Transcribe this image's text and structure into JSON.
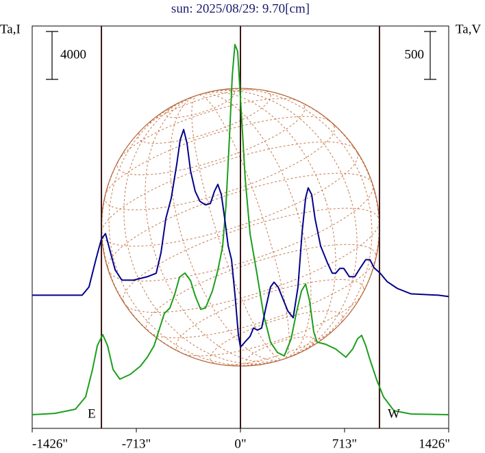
{
  "chart_data": {
    "type": "line",
    "title": "sun: 2025/08/29: 9.70[cm]",
    "y_label": "Ta,I",
    "y2_label": "Ta,V",
    "scale_bar": {
      "value": 4000,
      "label": "4000"
    },
    "scale_bar2": {
      "value": 500,
      "label": "500"
    },
    "xlim": [
      -1426,
      1426
    ],
    "xticks": [
      {
        "value": -1426,
        "label": "-1426\""
      },
      {
        "value": -713,
        "label": "-713\""
      },
      {
        "value": 0,
        "label": "0\""
      },
      {
        "value": 713,
        "label": "713\""
      },
      {
        "value": 1426,
        "label": "1426\""
      }
    ],
    "ylim": [
      -1140,
      32460
    ],
    "y2lim": [
      -1390,
      2810
    ],
    "solar_radius": 952,
    "vlines": [
      -952,
      0,
      952
    ],
    "east_label": "E",
    "west_label": "W",
    "series": [
      {
        "name": "Ta,I",
        "color": "#1a9e1a",
        "x": [
          -1426,
          -1271,
          -1130,
          -1060,
          -1013,
          -980,
          -943,
          -910,
          -872,
          -826,
          -755,
          -685,
          -638,
          -591,
          -554,
          -521,
          -483,
          -450,
          -417,
          -380,
          -342,
          -310,
          -272,
          -239,
          -192,
          -155,
          -122,
          -99,
          -75,
          -56,
          -38,
          -19,
          5,
          33,
          66,
          113,
          159,
          206,
          253,
          300,
          347,
          380,
          418,
          446,
          474,
          502,
          525,
          582,
          652,
          722,
          769,
          802,
          830,
          858,
          886,
          933,
          980,
          1051,
          1168,
          1426
        ],
        "values": [
          0,
          110,
          460,
          1490,
          3770,
          5770,
          6690,
          5770,
          3770,
          2970,
          3370,
          4060,
          4800,
          5770,
          7200,
          8460,
          8910,
          10060,
          11490,
          11830,
          11200,
          9940,
          8800,
          8910,
          10340,
          12060,
          14060,
          17490,
          23200,
          28340,
          30910,
          30340,
          25370,
          19660,
          15090,
          11770,
          8340,
          6060,
          5200,
          4910,
          6340,
          8340,
          10340,
          10910,
          9490,
          6910,
          6060,
          5890,
          5490,
          4800,
          5490,
          6340,
          6630,
          5770,
          4630,
          2910,
          1490,
          340,
          60,
          0
        ]
      },
      {
        "name": "Ta,V",
        "color": "#00008b",
        "axis": "y2",
        "x": [
          -1426,
          -1084,
          -1037,
          -990,
          -952,
          -924,
          -896,
          -858,
          -812,
          -732,
          -638,
          -577,
          -544,
          -511,
          -474,
          -436,
          -413,
          -389,
          -366,
          -342,
          -310,
          -277,
          -239,
          -206,
          -178,
          -155,
          -131,
          -108,
          -84,
          -61,
          -38,
          -14,
          0,
          33,
          66,
          89,
          117,
          145,
          174,
          206,
          230,
          258,
          286,
          324,
          361,
          394,
          422,
          446,
          464,
          488,
          511,
          549,
          596,
          629,
          652,
          680,
          708,
          746,
          783,
          821,
          858,
          887,
          915,
          957,
          1004,
          1074,
          1168,
          1356,
          1426
        ],
        "values": [
          0,
          0,
          86,
          371,
          586,
          643,
          479,
          264,
          157,
          157,
          193,
          229,
          443,
          800,
          1014,
          1371,
          1621,
          1729,
          1586,
          1300,
          1086,
          979,
          943,
          957,
          1086,
          1157,
          1050,
          800,
          514,
          371,
          14,
          -414,
          -543,
          -486,
          -429,
          -343,
          -364,
          -343,
          -129,
          86,
          136,
          86,
          -21,
          -164,
          -236,
          86,
          657,
          1014,
          1121,
          1050,
          800,
          514,
          336,
          229,
          229,
          279,
          279,
          193,
          193,
          286,
          371,
          371,
          286,
          229,
          143,
          71,
          14,
          0,
          -14
        ]
      }
    ]
  }
}
